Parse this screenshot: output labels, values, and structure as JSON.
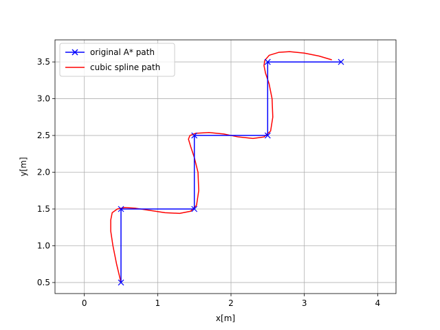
{
  "chart_data": {
    "type": "line",
    "xlabel": "x[m]",
    "ylabel": "y[m]",
    "xlim": [
      -0.4,
      4.25
    ],
    "ylim": [
      0.35,
      3.8
    ],
    "xticks": [
      0,
      1,
      2,
      3,
      4
    ],
    "xtick_labels": [
      "0",
      "1",
      "2",
      "3",
      "4"
    ],
    "yticks": [
      0.5,
      1.0,
      1.5,
      2.0,
      2.5,
      3.0,
      3.5
    ],
    "ytick_labels": [
      "0.5",
      "1.0",
      "1.5",
      "2.0",
      "2.5",
      "3.0",
      "3.5"
    ],
    "grid": true,
    "legend_position": "top-left",
    "series": [
      {
        "name": "original A* path",
        "color": "#0000ff",
        "marker": "x",
        "x": [
          0.5,
          0.5,
          1.5,
          1.5,
          2.5,
          2.5,
          3.5
        ],
        "y": [
          0.5,
          1.5,
          1.5,
          2.5,
          2.5,
          3.5,
          3.5
        ]
      },
      {
        "name": "cubic spline path",
        "color": "#ff0000",
        "marker": "none",
        "x": [
          0.5,
          0.44,
          0.39,
          0.36,
          0.36,
          0.38,
          0.45,
          0.55,
          0.7,
          0.9,
          1.1,
          1.3,
          1.45,
          1.53,
          1.56,
          1.55,
          1.5,
          1.45,
          1.42,
          1.44,
          1.52,
          1.7,
          1.9,
          2.1,
          2.3,
          2.45,
          2.54,
          2.57,
          2.56,
          2.52,
          2.47,
          2.45,
          2.46,
          2.52,
          2.65,
          2.8,
          3.0,
          3.2,
          3.37
        ],
        "y": [
          0.5,
          0.75,
          1.0,
          1.2,
          1.35,
          1.45,
          1.5,
          1.52,
          1.51,
          1.48,
          1.45,
          1.44,
          1.47,
          1.55,
          1.75,
          2.0,
          2.2,
          2.35,
          2.45,
          2.5,
          2.53,
          2.54,
          2.52,
          2.48,
          2.46,
          2.48,
          2.56,
          2.75,
          3.0,
          3.2,
          3.35,
          3.45,
          3.52,
          3.59,
          3.63,
          3.64,
          3.62,
          3.58,
          3.53
        ]
      }
    ]
  },
  "legend": {
    "items": [
      {
        "label": "original A* path"
      },
      {
        "label": "cubic spline path"
      }
    ]
  }
}
